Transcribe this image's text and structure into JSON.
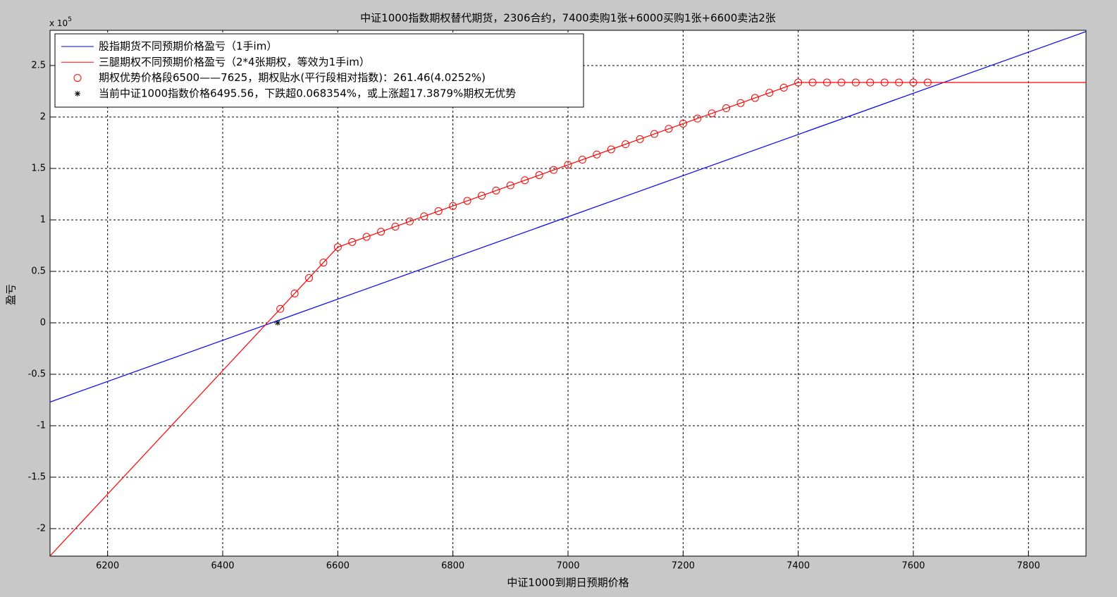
{
  "chart_data": {
    "type": "line",
    "title": "中证1000指数期权替代期货，2306合约，7400卖购1张+6000买购1张+6600卖沽2张",
    "x_label": "中证1000到期日预期价格",
    "y_label": "盈亏",
    "y_multiplier": {
      "base": "x 10",
      "exponent": "5"
    },
    "xlim": [
      6100,
      7900
    ],
    "ylim": [
      -2.267,
      2.842
    ],
    "xticks": [
      6200,
      6400,
      6600,
      6800,
      7000,
      7200,
      7400,
      7600,
      7800
    ],
    "yticks": [
      -2,
      -1.5,
      -1,
      -0.5,
      0,
      0.5,
      1,
      1.5,
      2,
      2.5
    ],
    "grid": true,
    "legend": "upper-left",
    "series": [
      {
        "name": "股指期货不同预期价格盈亏（1手im）",
        "color": "#0000ff",
        "mark": "line",
        "x": [
          6100,
          7900
        ],
        "values": [
          -0.77,
          2.83
        ]
      },
      {
        "name": "三腿期权不同预期价格盈亏（2*4张期权，等效为1手im）",
        "color": "#ff0000",
        "mark": "line",
        "x": [
          6100,
          6600,
          7400,
          7900
        ],
        "values": [
          -2.265,
          0.735,
          2.335,
          2.335
        ]
      },
      {
        "name": "期权优势价格段6500——7625，期权贴水(平行段相对指数)：261.46(4.0252%)",
        "color": "#ff0000",
        "mark": "circle",
        "x": [
          6500,
          6525,
          6550,
          6575,
          6600,
          6625,
          6650,
          6675,
          6700,
          6725,
          6750,
          6775,
          6800,
          6825,
          6850,
          6875,
          6900,
          6925,
          6950,
          6975,
          7000,
          7025,
          7050,
          7075,
          7100,
          7125,
          7150,
          7175,
          7200,
          7225,
          7250,
          7275,
          7300,
          7325,
          7350,
          7375,
          7400,
          7425,
          7450,
          7475,
          7500,
          7525,
          7550,
          7575,
          7600,
          7625
        ],
        "values": [
          0.135,
          0.285,
          0.435,
          0.585,
          0.735,
          0.785,
          0.835,
          0.885,
          0.935,
          0.985,
          1.035,
          1.085,
          1.135,
          1.185,
          1.235,
          1.285,
          1.335,
          1.385,
          1.435,
          1.485,
          1.535,
          1.585,
          1.635,
          1.685,
          1.735,
          1.785,
          1.835,
          1.885,
          1.935,
          1.985,
          2.035,
          2.085,
          2.135,
          2.185,
          2.235,
          2.285,
          2.335,
          2.335,
          2.335,
          2.335,
          2.335,
          2.335,
          2.335,
          2.335,
          2.335,
          2.335
        ]
      },
      {
        "name": "当前中证1000指数价格6495.56，下跌超0.068354%，或上涨超17.3879%期权无优势",
        "color": "#000000",
        "mark": "star",
        "x": [
          6495.56
        ],
        "values": [
          0
        ]
      }
    ]
  }
}
